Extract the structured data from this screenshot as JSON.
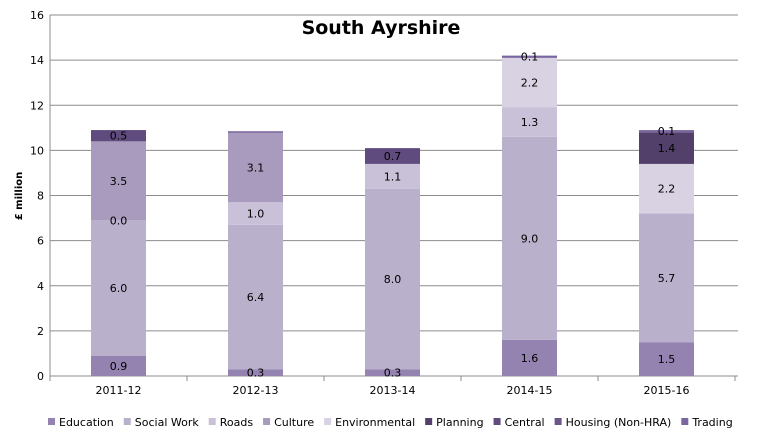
{
  "chart_data": {
    "type": "bar",
    "stacked": true,
    "title": "South Ayrshire",
    "xlabel": "",
    "ylabel": "£ million",
    "ylim": [
      0,
      16
    ],
    "yticks": [
      0,
      2,
      4,
      6,
      8,
      10,
      12,
      14,
      16
    ],
    "grid": true,
    "legend_position": "bottom",
    "categories": [
      "2011-12",
      "2012-13",
      "2013-14",
      "2014-15",
      "2015-16"
    ],
    "series": [
      {
        "name": "Education",
        "color": "#9482b0",
        "values": [
          0.9,
          0.3,
          0.3,
          1.6,
          1.5
        ]
      },
      {
        "name": "Social Work",
        "color": "#b9b0cb",
        "values": [
          6.0,
          6.4,
          8.0,
          9.0,
          5.7
        ]
      },
      {
        "name": "Roads",
        "color": "#c8c1d8",
        "values": [
          0.0,
          1.0,
          1.1,
          1.3,
          0
        ]
      },
      {
        "name": "Culture",
        "color": "#a99bbe",
        "values": [
          3.5,
          3.1,
          0,
          0,
          0
        ]
      },
      {
        "name": "Environmental",
        "color": "#d8d2e2",
        "values": [
          0,
          0,
          0,
          2.2,
          2.2
        ]
      },
      {
        "name": "Planning",
        "color": "#523f6a",
        "values": [
          0,
          0,
          0,
          0,
          1.4
        ]
      },
      {
        "name": "Central",
        "color": "#5f4b7e",
        "values": [
          0.5,
          0,
          0.7,
          0,
          0
        ]
      },
      {
        "name": "Housing (Non-HRA)",
        "color": "#6a5689",
        "values": [
          0,
          0,
          0,
          0,
          0
        ]
      },
      {
        "name": "Trading",
        "color": "#7a66a0",
        "values": [
          0,
          0.05,
          0,
          0.1,
          0.1
        ]
      }
    ],
    "data_labels": [
      [
        {
          "series": 0,
          "text": "0.9"
        },
        {
          "series": 1,
          "text": "6.0"
        },
        {
          "series": 2,
          "text": "0.0"
        },
        {
          "series": 3,
          "text": "3.5"
        },
        {
          "series": 6,
          "text": "0.5"
        }
      ],
      [
        {
          "series": 0,
          "text": "0.3"
        },
        {
          "series": 1,
          "text": "6.4"
        },
        {
          "series": 2,
          "text": "1.0"
        },
        {
          "series": 3,
          "text": "3.1"
        }
      ],
      [
        {
          "series": 0,
          "text": "0.3"
        },
        {
          "series": 1,
          "text": "8.0"
        },
        {
          "series": 2,
          "text": "1.1"
        },
        {
          "series": 6,
          "text": "0.7"
        }
      ],
      [
        {
          "series": 0,
          "text": "1.6"
        },
        {
          "series": 1,
          "text": "9.0"
        },
        {
          "series": 2,
          "text": "1.3"
        },
        {
          "series": 4,
          "text": "2.2"
        },
        {
          "series": 8,
          "text": "0.1"
        }
      ],
      [
        {
          "series": 0,
          "text": "1.5"
        },
        {
          "series": 1,
          "text": "5.7"
        },
        {
          "series": 4,
          "text": "2.2"
        },
        {
          "series": 5,
          "text": "1.4"
        },
        {
          "series": 8,
          "text": "0.1"
        }
      ]
    ]
  }
}
